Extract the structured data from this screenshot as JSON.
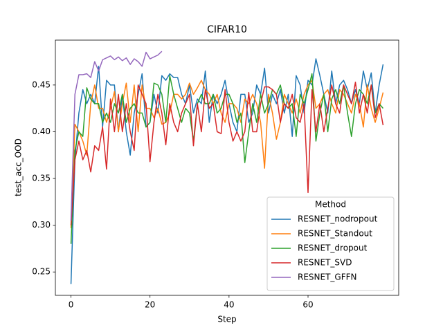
{
  "chart_data": {
    "type": "line",
    "title": "CIFAR10",
    "x_label": "Step",
    "y_label": "test_acc_OOD",
    "xlim": [
      -3.95,
      82.95
    ],
    "xticks": [
      0,
      20,
      40,
      60
    ],
    "ylim": [
      0.225,
      0.498
    ],
    "yticks": [
      0.25,
      {
        "value": 0.3,
        "label": "0.30"
      },
      0.35,
      {
        "value": 0.4,
        "label": "0.40"
      },
      0.45
    ],
    "legend_title": "Method",
    "legend": "lower right",
    "series": [
      {
        "name": "RESNET_nodropout",
        "color": "#1f77b4",
        "values": [
          0.237,
          0.37,
          0.42,
          0.445,
          0.43,
          0.44,
          0.43,
          0.47,
          0.405,
          0.455,
          0.45,
          0.45,
          0.4,
          0.44,
          0.4,
          0.375,
          0.42,
          0.44,
          0.462,
          0.405,
          0.41,
          0.44,
          0.42,
          0.46,
          0.455,
          0.462,
          0.458,
          0.458,
          0.44,
          0.43,
          0.45,
          0.42,
          0.435,
          0.43,
          0.465,
          0.41,
          0.44,
          0.43,
          0.44,
          0.455,
          0.43,
          0.41,
          0.4,
          0.44,
          0.44,
          0.41,
          0.42,
          0.45,
          0.44,
          0.468,
          0.42,
          0.44,
          0.43,
          0.445,
          0.42,
          0.44,
          0.395,
          0.46,
          0.45,
          0.42,
          0.455,
          0.45,
          0.478,
          0.46,
          0.44,
          0.42,
          0.465,
          0.43,
          0.45,
          0.455,
          0.445,
          0.43,
          0.445,
          0.43,
          0.465,
          0.445,
          0.463,
          0.42,
          0.45,
          0.472
        ]
      },
      {
        "name": "RESNET_Standout",
        "color": "#ff7f0e",
        "values": [
          0.297,
          0.408,
          0.4,
          0.39,
          0.375,
          0.43,
          0.45,
          0.425,
          0.425,
          0.41,
          0.425,
          0.443,
          0.4,
          0.43,
          0.452,
          0.41,
          0.45,
          0.4,
          0.45,
          0.425,
          0.425,
          0.415,
          0.425,
          0.408,
          0.41,
          0.42,
          0.44,
          0.44,
          0.435,
          0.44,
          0.452,
          0.44,
          0.447,
          0.455,
          0.445,
          0.44,
          0.43,
          0.44,
          0.42,
          0.41,
          0.43,
          0.43,
          0.425,
          0.41,
          0.435,
          0.43,
          0.44,
          0.43,
          0.41,
          0.361,
          0.44,
          0.42,
          0.392,
          0.41,
          0.44,
          0.43,
          0.42,
          0.435,
          0.42,
          0.44,
          0.45,
          0.455,
          0.425,
          0.43,
          0.44,
          0.445,
          0.43,
          0.42,
          0.445,
          0.44,
          0.43,
          0.42,
          0.44,
          0.43,
          0.405,
          0.45,
          0.425,
          0.41,
          0.425,
          0.442
        ]
      },
      {
        "name": "RESNET_dropout",
        "color": "#2ca02c",
        "values": [
          0.28,
          0.38,
          0.4,
          0.395,
          0.447,
          0.435,
          0.43,
          0.43,
          0.41,
          0.42,
          0.41,
          0.43,
          0.42,
          0.44,
          0.41,
          0.425,
          0.43,
          0.42,
          0.42,
          0.405,
          0.41,
          0.452,
          0.45,
          0.44,
          0.41,
          0.46,
          0.44,
          0.425,
          0.41,
          0.425,
          0.42,
          0.39,
          0.43,
          0.44,
          0.43,
          0.43,
          0.44,
          0.42,
          0.425,
          0.44,
          0.44,
          0.43,
          0.41,
          0.42,
          0.367,
          0.4,
          0.43,
          0.41,
          0.44,
          0.42,
          0.43,
          0.445,
          0.44,
          0.45,
          0.43,
          0.425,
          0.43,
          0.395,
          0.44,
          0.43,
          0.445,
          0.462,
          0.39,
          0.42,
          0.44,
          0.4,
          0.435,
          0.445,
          0.43,
          0.45,
          0.42,
          0.395,
          0.43,
          0.445,
          0.44,
          0.43,
          0.45,
          0.42,
          0.43,
          0.425
        ]
      },
      {
        "name": "RESNET_SVD",
        "color": "#d62728",
        "values": [
          0.3,
          0.37,
          0.39,
          0.37,
          0.38,
          0.357,
          0.385,
          0.38,
          0.405,
          0.36,
          0.435,
          0.4,
          0.44,
          0.4,
          0.43,
          0.4,
          0.38,
          0.45,
          0.44,
          0.43,
          0.368,
          0.41,
          0.44,
          0.42,
          0.386,
          0.43,
          0.41,
          0.4,
          0.42,
          0.43,
          0.44,
          0.385,
          0.43,
          0.4,
          0.445,
          0.425,
          0.43,
          0.4,
          0.398,
          0.445,
          0.41,
          0.39,
          0.4,
          0.39,
          0.4,
          0.442,
          0.4,
          0.4,
          0.43,
          0.448,
          0.448,
          0.445,
          0.44,
          0.41,
          0.43,
          0.425,
          0.44,
          0.415,
          0.41,
          0.43,
          0.335,
          0.445,
          0.4,
          0.43,
          0.4,
          0.425,
          0.45,
          0.43,
          0.42,
          0.45,
          0.44,
          0.43,
          0.453,
          0.42,
          0.44,
          0.42,
          0.45,
          0.415,
          0.43,
          0.407
        ]
      },
      {
        "name": "RESNET_GFFN",
        "color": "#9467bd",
        "values": [
          0.305,
          0.44,
          0.461,
          0.461,
          0.462,
          0.458,
          0.475,
          0.465,
          0.477,
          0.479,
          0.481,
          0.477,
          0.48,
          0.476,
          0.479,
          0.472,
          0.478,
          0.475,
          0.47,
          0.485,
          0.478,
          0.48,
          0.482,
          0.486
        ]
      }
    ]
  }
}
